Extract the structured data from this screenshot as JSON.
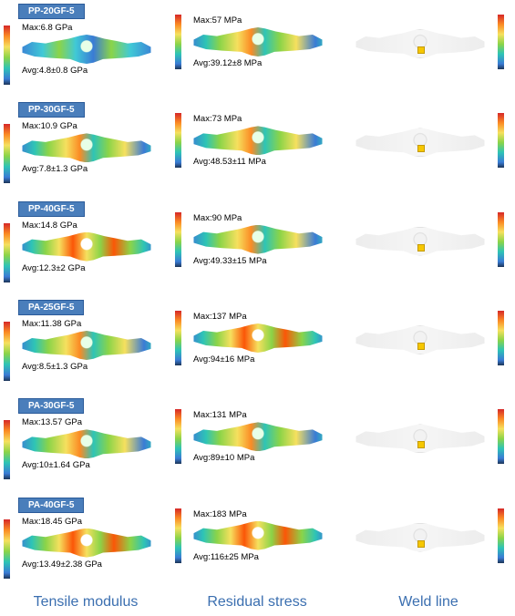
{
  "columns": {
    "tensile": "Tensile modulus",
    "residual": "Residual stress",
    "weld": "Weld line"
  },
  "colorbar_gradient": [
    "#d62828",
    "#fb8b24",
    "#f6e05e",
    "#8bd448",
    "#2ec4b6",
    "#3a7bd5",
    "#1d3557"
  ],
  "rows": [
    {
      "badge": "PP-20GF-5",
      "tensile": {
        "max": "Max:6.8 GPa",
        "avg": "Avg:4.8±0.8 GPa",
        "style": "blueish"
      },
      "stress": {
        "max": "Max:57 MPa",
        "avg": "Avg:39.12±8 MPa",
        "style": "fea"
      }
    },
    {
      "badge": "PP-30GF-5",
      "tensile": {
        "max": "Max:10.9 GPa",
        "avg": "Avg:7.8±1.3 GPa",
        "style": "fea"
      },
      "stress": {
        "max": "Max:73 MPa",
        "avg": "Avg:48.53±11 MPa",
        "style": "fea"
      }
    },
    {
      "badge": "PP-40GF-5",
      "tensile": {
        "max": "Max:14.8 GPa",
        "avg": "Avg:12.3±2 GPa",
        "style": "hot"
      },
      "stress": {
        "max": "Max:90 MPa",
        "avg": "Avg:49.33±15 MPa",
        "style": "fea"
      }
    },
    {
      "badge": "PA-25GF-5",
      "tensile": {
        "max": "Max:11.38 GPa",
        "avg": "Avg:8.5±1.3 GPa",
        "style": "fea"
      },
      "stress": {
        "max": "Max:137 MPa",
        "avg": "Avg:94±16 MPa",
        "style": "hot"
      }
    },
    {
      "badge": "PA-30GF-5",
      "tensile": {
        "max": "Max:13.57 GPa",
        "avg": "Avg:10±1.64 GPa",
        "style": "fea"
      },
      "stress": {
        "max": "Max:131 MPa",
        "avg": "Avg:89±10 MPa",
        "style": "fea"
      }
    },
    {
      "badge": "PA-40GF-5",
      "tensile": {
        "max": "Max:18.45 GPa",
        "avg": "Avg:13.49±2.38 GPa",
        "style": "hot"
      },
      "stress": {
        "max": "Max:183 MPa",
        "avg": "Avg:116±25 MPa",
        "style": "hot"
      }
    }
  ]
}
